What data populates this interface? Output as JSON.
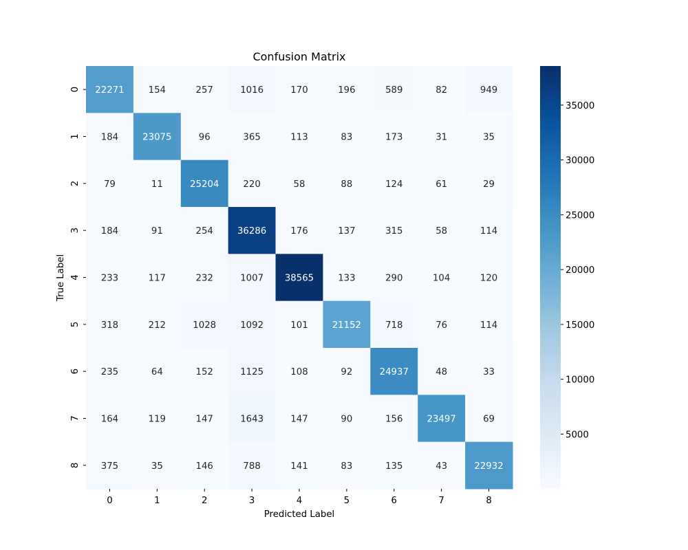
{
  "chart_data": {
    "type": "heatmap",
    "title": "Confusion Matrix",
    "xlabel": "Predicted Label",
    "ylabel": "True Label",
    "x_categories": [
      "0",
      "1",
      "2",
      "3",
      "4",
      "5",
      "6",
      "7",
      "8"
    ],
    "y_categories": [
      "0",
      "1",
      "2",
      "3",
      "4",
      "5",
      "6",
      "7",
      "8"
    ],
    "values": [
      [
        22271,
        154,
        257,
        1016,
        170,
        196,
        589,
        82,
        949
      ],
      [
        184,
        23075,
        96,
        365,
        113,
        83,
        173,
        31,
        35
      ],
      [
        79,
        11,
        25204,
        220,
        58,
        88,
        124,
        61,
        29
      ],
      [
        184,
        91,
        254,
        36286,
        176,
        137,
        315,
        58,
        114
      ],
      [
        233,
        117,
        232,
        1007,
        38565,
        133,
        290,
        104,
        120
      ],
      [
        318,
        212,
        1028,
        1092,
        101,
        21152,
        718,
        76,
        114
      ],
      [
        235,
        64,
        152,
        1125,
        108,
        92,
        24937,
        48,
        33
      ],
      [
        164,
        119,
        147,
        1643,
        147,
        90,
        156,
        23497,
        69
      ],
      [
        375,
        35,
        146,
        788,
        141,
        83,
        135,
        43,
        22932
      ]
    ],
    "colormap": "Blues",
    "color_range": [
      11,
      38565
    ],
    "colorbar_ticks": [
      5000,
      10000,
      15000,
      20000,
      25000,
      30000,
      35000
    ],
    "grid": false
  }
}
